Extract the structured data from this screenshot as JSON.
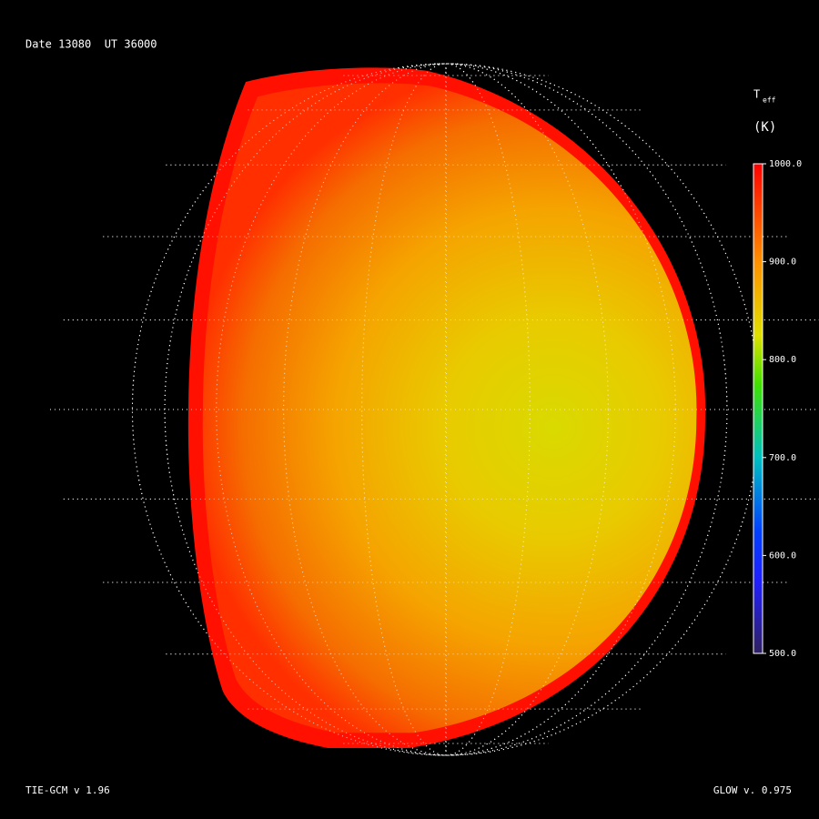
{
  "header": {
    "title": "Date 13080  UT 36000"
  },
  "colorbar": {
    "symbol": "T",
    "subscript": "eff",
    "unit": "(K)",
    "lim": [
      500,
      1000
    ],
    "ticks": [
      {
        "value": 1000,
        "label": "1000.0"
      },
      {
        "value": 900,
        "label": "900.0"
      },
      {
        "value": 800,
        "label": "800.0"
      },
      {
        "value": 700,
        "label": "700.0"
      },
      {
        "value": 600,
        "label": "600.0"
      },
      {
        "value": 500,
        "label": "500.0"
      }
    ]
  },
  "footer": {
    "left": "TIE-GCM v 1.96",
    "right": "GLOW v. 0.975"
  }
}
